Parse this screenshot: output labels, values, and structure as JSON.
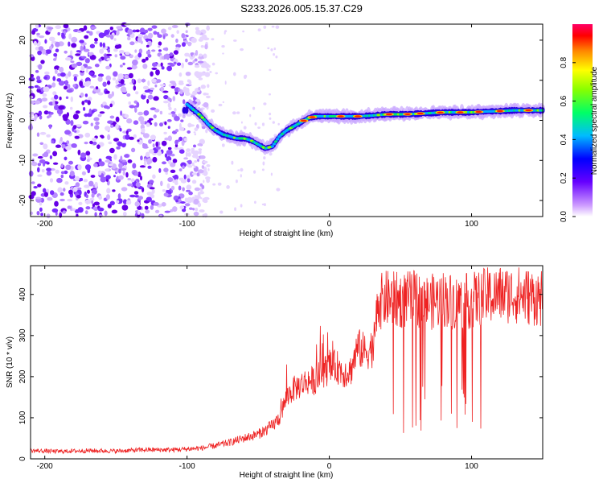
{
  "title": "S233.2026.005.15.37.C29",
  "chart_data": [
    {
      "type": "heatmap",
      "xlabel": "Height of straight line (km)",
      "ylabel": "Frequency (Hz)",
      "xlim": [
        -210,
        150
      ],
      "ylim": [
        -24,
        24
      ],
      "xticks": [
        -200,
        -100,
        0,
        100
      ],
      "yticks": [
        -20,
        -10,
        0,
        10,
        20
      ],
      "colorbar": {
        "label": "Normalized spectral amplitude",
        "range": [
          0,
          1
        ],
        "ticks": [
          "0.0",
          "0.2",
          "0.4",
          "0.6",
          "0.8"
        ]
      },
      "ridge": {
        "x": [
          -100,
          -95,
          -90,
          -85,
          -80,
          -75,
          -70,
          -65,
          -60,
          -55,
          -50,
          -45,
          -40,
          -35,
          -30,
          -25,
          -20,
          -15,
          -10,
          -5,
          0,
          10,
          20,
          30,
          40,
          50,
          60,
          70,
          80,
          90,
          100,
          110,
          120,
          130,
          140,
          150
        ],
        "y": [
          4,
          2.5,
          1,
          -1,
          -2.5,
          -3.5,
          -4,
          -4.5,
          -4.5,
          -5,
          -6,
          -7,
          -6.5,
          -4,
          -2.5,
          -1.5,
          -0.5,
          0.5,
          1,
          1,
          1,
          1,
          1,
          1.2,
          1.5,
          1.5,
          1.6,
          1.8,
          2,
          2,
          2,
          2.2,
          2.3,
          2.5,
          2.5,
          2.5
        ],
        "noise_region_x": [
          -210,
          -90
        ]
      }
    },
    {
      "type": "line",
      "xlabel": "Height of straight line (km)",
      "ylabel": "SNR (10 * v/v)",
      "xlim": [
        -210,
        150
      ],
      "ylim": [
        0,
        470
      ],
      "xticks": [
        -200,
        -100,
        0,
        100
      ],
      "yticks": [
        0,
        100,
        200,
        300,
        400
      ],
      "color": "#ee2222",
      "series": [
        {
          "name": "SNR",
          "x": [
            -210,
            -190,
            -170,
            -150,
            -130,
            -110,
            -100,
            -90,
            -80,
            -70,
            -60,
            -50,
            -40,
            -35,
            -30,
            -25,
            -20,
            -15,
            -10,
            -5,
            0,
            5,
            10,
            15,
            20,
            25,
            30,
            35,
            40,
            50,
            60,
            70,
            80,
            90,
            100,
            110,
            120,
            130,
            140,
            150
          ],
          "values": [
            20,
            18,
            20,
            19,
            22,
            22,
            24,
            26,
            32,
            40,
            50,
            60,
            80,
            100,
            150,
            170,
            180,
            190,
            190,
            210,
            220,
            225,
            210,
            215,
            270,
            260,
            270,
            380,
            390,
            385,
            390,
            380,
            390,
            380,
            385,
            395,
            400,
            400,
            395,
            390
          ]
        }
      ]
    }
  ]
}
